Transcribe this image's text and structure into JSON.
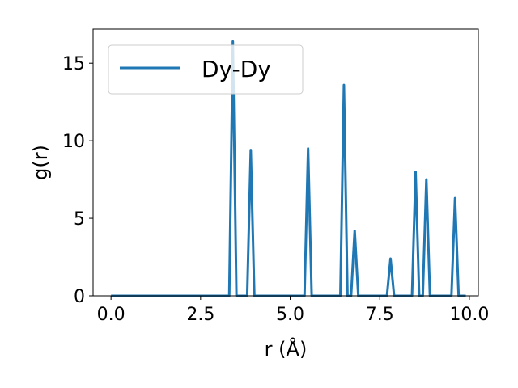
{
  "chart_data": {
    "type": "line",
    "title": "",
    "xlabel": "r (Å)",
    "ylabel": "g(r)",
    "xlim": [
      -0.5,
      10.25
    ],
    "ylim": [
      0,
      17.2
    ],
    "xticks": [
      0.0,
      2.5,
      5.0,
      7.5,
      10.0
    ],
    "xtick_labels": [
      "0.0",
      "2.5",
      "5.0",
      "7.5",
      "10.0"
    ],
    "yticks": [
      0,
      5,
      10,
      15
    ],
    "ytick_labels": [
      "0",
      "5",
      "10",
      "15"
    ],
    "grid": false,
    "legend": {
      "position": "top-left"
    },
    "series": [
      {
        "name": "Dy-Dy",
        "color": "#1f77b4",
        "x": [
          0.0,
          3.3,
          3.4,
          3.5,
          3.8,
          3.9,
          4.0,
          5.4,
          5.5,
          5.6,
          6.4,
          6.5,
          6.6,
          6.7,
          6.8,
          6.9,
          7.7,
          7.8,
          7.9,
          8.4,
          8.5,
          8.6,
          8.7,
          8.8,
          8.9,
          9.5,
          9.6,
          9.7,
          9.9
        ],
        "y": [
          0,
          0,
          16.4,
          0,
          0,
          9.4,
          0,
          0,
          9.5,
          0,
          0,
          13.6,
          0,
          0,
          4.2,
          0,
          0,
          2.4,
          0,
          0,
          8.0,
          0,
          0,
          7.5,
          0,
          0,
          6.3,
          0,
          0
        ]
      }
    ]
  }
}
